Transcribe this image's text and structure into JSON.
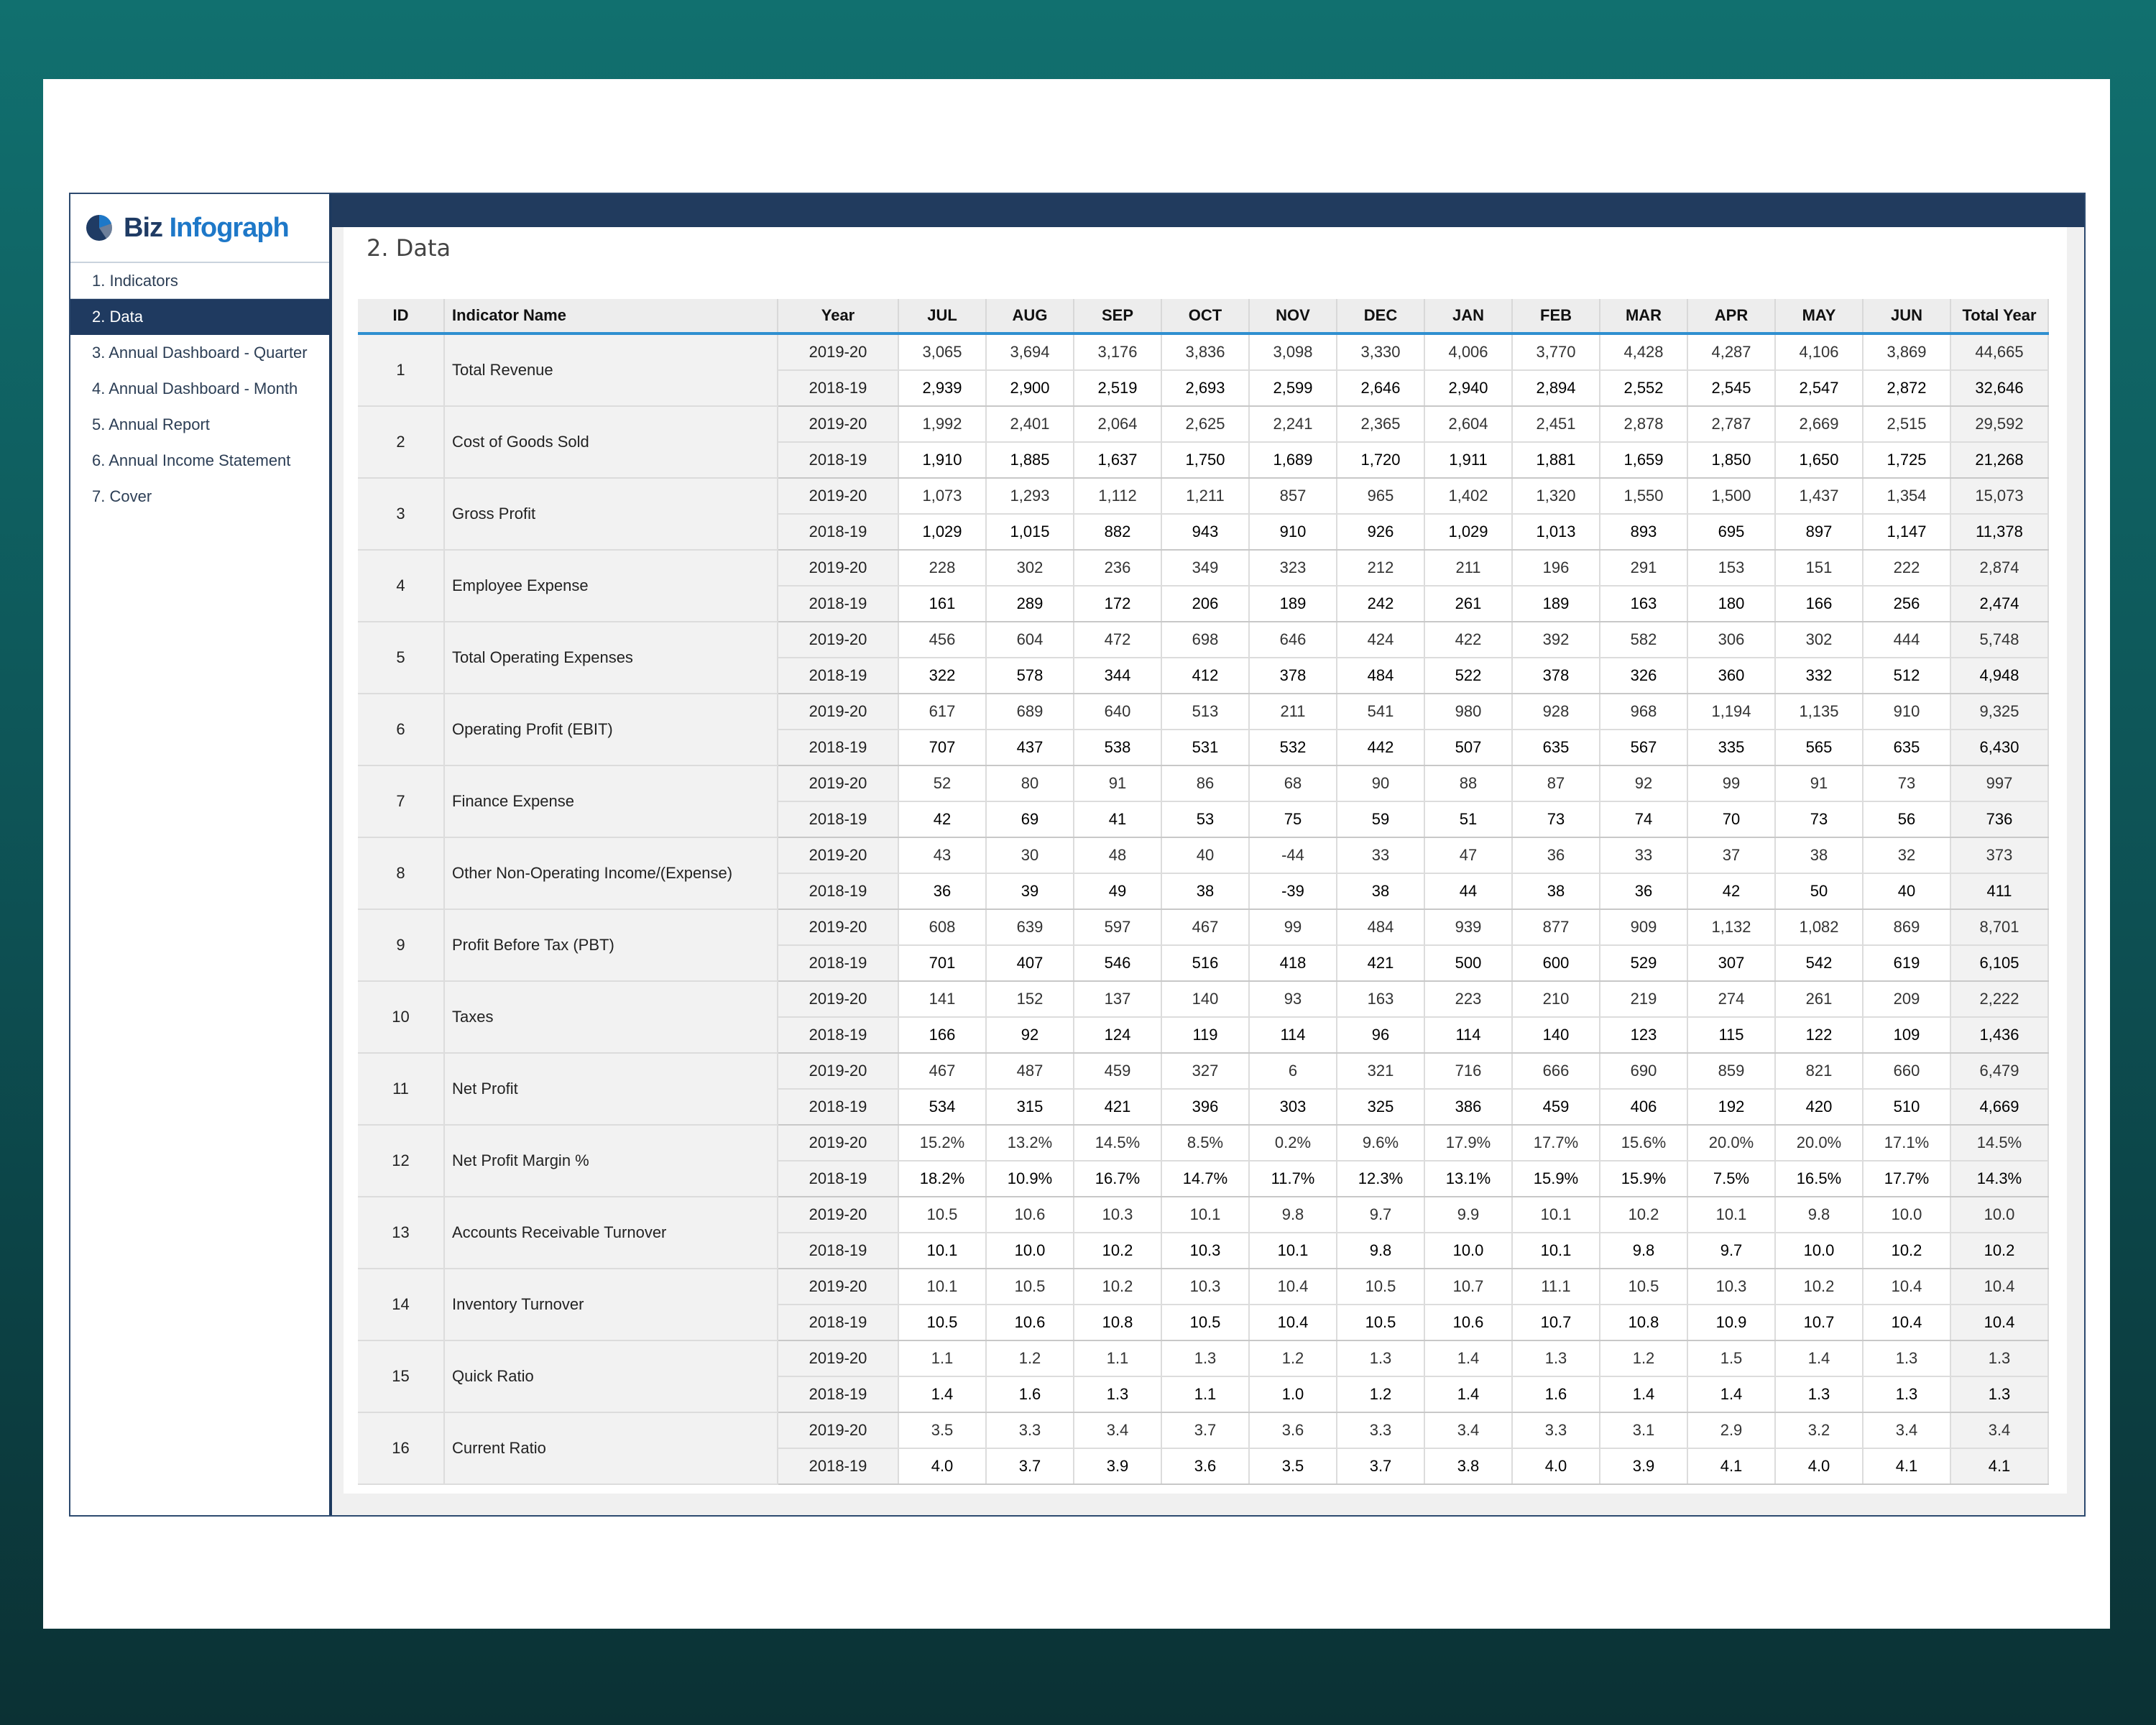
{
  "logo": {
    "part1": "Biz",
    "part2": "Infograph"
  },
  "sidebar": {
    "items": [
      {
        "label": "1. Indicators"
      },
      {
        "label": "2. Data"
      },
      {
        "label": "3. Annual Dashboard - Quarter"
      },
      {
        "label": "4. Annual Dashboard - Month"
      },
      {
        "label": "5. Annual Report"
      },
      {
        "label": "6. Annual Income Statement"
      },
      {
        "label": "7. Cover"
      }
    ]
  },
  "page": {
    "title": "2. Data"
  },
  "table": {
    "headers": [
      "ID",
      "Indicator Name",
      "Year",
      "JUL",
      "AUG",
      "SEP",
      "OCT",
      "NOV",
      "DEC",
      "JAN",
      "FEB",
      "MAR",
      "APR",
      "MAY",
      "JUN",
      "Total Year"
    ],
    "rows": [
      {
        "id": "1",
        "name": "Total Revenue",
        "y1": "2019-20",
        "v1": [
          "3,065",
          "3,694",
          "3,176",
          "3,836",
          "3,098",
          "3,330",
          "4,006",
          "3,770",
          "4,428",
          "4,287",
          "4,106",
          "3,869",
          "44,665"
        ],
        "y2": "2018-19",
        "v2": [
          "2,939",
          "2,900",
          "2,519",
          "2,693",
          "2,599",
          "2,646",
          "2,940",
          "2,894",
          "2,552",
          "2,545",
          "2,547",
          "2,872",
          "32,646"
        ]
      },
      {
        "id": "2",
        "name": "Cost of Goods Sold",
        "y1": "2019-20",
        "v1": [
          "1,992",
          "2,401",
          "2,064",
          "2,625",
          "2,241",
          "2,365",
          "2,604",
          "2,451",
          "2,878",
          "2,787",
          "2,669",
          "2,515",
          "29,592"
        ],
        "y2": "2018-19",
        "v2": [
          "1,910",
          "1,885",
          "1,637",
          "1,750",
          "1,689",
          "1,720",
          "1,911",
          "1,881",
          "1,659",
          "1,850",
          "1,650",
          "1,725",
          "21,268"
        ]
      },
      {
        "id": "3",
        "name": "Gross Profit",
        "y1": "2019-20",
        "v1": [
          "1,073",
          "1,293",
          "1,112",
          "1,211",
          "857",
          "965",
          "1,402",
          "1,320",
          "1,550",
          "1,500",
          "1,437",
          "1,354",
          "15,073"
        ],
        "y2": "2018-19",
        "v2": [
          "1,029",
          "1,015",
          "882",
          "943",
          "910",
          "926",
          "1,029",
          "1,013",
          "893",
          "695",
          "897",
          "1,147",
          "11,378"
        ]
      },
      {
        "id": "4",
        "name": "Employee Expense",
        "y1": "2019-20",
        "v1": [
          "228",
          "302",
          "236",
          "349",
          "323",
          "212",
          "211",
          "196",
          "291",
          "153",
          "151",
          "222",
          "2,874"
        ],
        "y2": "2018-19",
        "v2": [
          "161",
          "289",
          "172",
          "206",
          "189",
          "242",
          "261",
          "189",
          "163",
          "180",
          "166",
          "256",
          "2,474"
        ]
      },
      {
        "id": "5",
        "name": "Total Operating Expenses",
        "y1": "2019-20",
        "v1": [
          "456",
          "604",
          "472",
          "698",
          "646",
          "424",
          "422",
          "392",
          "582",
          "306",
          "302",
          "444",
          "5,748"
        ],
        "y2": "2018-19",
        "v2": [
          "322",
          "578",
          "344",
          "412",
          "378",
          "484",
          "522",
          "378",
          "326",
          "360",
          "332",
          "512",
          "4,948"
        ]
      },
      {
        "id": "6",
        "name": "Operating Profit (EBIT)",
        "y1": "2019-20",
        "v1": [
          "617",
          "689",
          "640",
          "513",
          "211",
          "541",
          "980",
          "928",
          "968",
          "1,194",
          "1,135",
          "910",
          "9,325"
        ],
        "y2": "2018-19",
        "v2": [
          "707",
          "437",
          "538",
          "531",
          "532",
          "442",
          "507",
          "635",
          "567",
          "335",
          "565",
          "635",
          "6,430"
        ]
      },
      {
        "id": "7",
        "name": "Finance Expense",
        "y1": "2019-20",
        "v1": [
          "52",
          "80",
          "91",
          "86",
          "68",
          "90",
          "88",
          "87",
          "92",
          "99",
          "91",
          "73",
          "997"
        ],
        "y2": "2018-19",
        "v2": [
          "42",
          "69",
          "41",
          "53",
          "75",
          "59",
          "51",
          "73",
          "74",
          "70",
          "73",
          "56",
          "736"
        ]
      },
      {
        "id": "8",
        "name": "Other Non-Operating Income/(Expense)",
        "y1": "2019-20",
        "v1": [
          "43",
          "30",
          "48",
          "40",
          "-44",
          "33",
          "47",
          "36",
          "33",
          "37",
          "38",
          "32",
          "373"
        ],
        "y2": "2018-19",
        "v2": [
          "36",
          "39",
          "49",
          "38",
          "-39",
          "38",
          "44",
          "38",
          "36",
          "42",
          "50",
          "40",
          "411"
        ]
      },
      {
        "id": "9",
        "name": "Profit Before Tax (PBT)",
        "y1": "2019-20",
        "v1": [
          "608",
          "639",
          "597",
          "467",
          "99",
          "484",
          "939",
          "877",
          "909",
          "1,132",
          "1,082",
          "869",
          "8,701"
        ],
        "y2": "2018-19",
        "v2": [
          "701",
          "407",
          "546",
          "516",
          "418",
          "421",
          "500",
          "600",
          "529",
          "307",
          "542",
          "619",
          "6,105"
        ]
      },
      {
        "id": "10",
        "name": "Taxes",
        "y1": "2019-20",
        "v1": [
          "141",
          "152",
          "137",
          "140",
          "93",
          "163",
          "223",
          "210",
          "219",
          "274",
          "261",
          "209",
          "2,222"
        ],
        "y2": "2018-19",
        "v2": [
          "166",
          "92",
          "124",
          "119",
          "114",
          "96",
          "114",
          "140",
          "123",
          "115",
          "122",
          "109",
          "1,436"
        ]
      },
      {
        "id": "11",
        "name": "Net Profit",
        "y1": "2019-20",
        "v1": [
          "467",
          "487",
          "459",
          "327",
          "6",
          "321",
          "716",
          "666",
          "690",
          "859",
          "821",
          "660",
          "6,479"
        ],
        "y2": "2018-19",
        "v2": [
          "534",
          "315",
          "421",
          "396",
          "303",
          "325",
          "386",
          "459",
          "406",
          "192",
          "420",
          "510",
          "4,669"
        ]
      },
      {
        "id": "12",
        "name": "Net Profit Margin %",
        "y1": "2019-20",
        "v1": [
          "15.2%",
          "13.2%",
          "14.5%",
          "8.5%",
          "0.2%",
          "9.6%",
          "17.9%",
          "17.7%",
          "15.6%",
          "20.0%",
          "20.0%",
          "17.1%",
          "14.5%"
        ],
        "y2": "2018-19",
        "v2": [
          "18.2%",
          "10.9%",
          "16.7%",
          "14.7%",
          "11.7%",
          "12.3%",
          "13.1%",
          "15.9%",
          "15.9%",
          "7.5%",
          "16.5%",
          "17.7%",
          "14.3%"
        ]
      },
      {
        "id": "13",
        "name": "Accounts Receivable Turnover",
        "y1": "2019-20",
        "v1": [
          "10.5",
          "10.6",
          "10.3",
          "10.1",
          "9.8",
          "9.7",
          "9.9",
          "10.1",
          "10.2",
          "10.1",
          "9.8",
          "10.0",
          "10.0"
        ],
        "y2": "2018-19",
        "v2": [
          "10.1",
          "10.0",
          "10.2",
          "10.3",
          "10.1",
          "9.8",
          "10.0",
          "10.1",
          "9.8",
          "9.7",
          "10.0",
          "10.2",
          "10.2"
        ]
      },
      {
        "id": "14",
        "name": "Inventory Turnover",
        "y1": "2019-20",
        "v1": [
          "10.1",
          "10.5",
          "10.2",
          "10.3",
          "10.4",
          "10.5",
          "10.7",
          "11.1",
          "10.5",
          "10.3",
          "10.2",
          "10.4",
          "10.4"
        ],
        "y2": "2018-19",
        "v2": [
          "10.5",
          "10.6",
          "10.8",
          "10.5",
          "10.4",
          "10.5",
          "10.6",
          "10.7",
          "10.8",
          "10.9",
          "10.7",
          "10.4",
          "10.4"
        ]
      },
      {
        "id": "15",
        "name": "Quick Ratio",
        "y1": "2019-20",
        "v1": [
          "1.1",
          "1.2",
          "1.1",
          "1.3",
          "1.2",
          "1.3",
          "1.4",
          "1.3",
          "1.2",
          "1.5",
          "1.4",
          "1.3",
          "1.3"
        ],
        "y2": "2018-19",
        "v2": [
          "1.4",
          "1.6",
          "1.3",
          "1.1",
          "1.0",
          "1.2",
          "1.4",
          "1.6",
          "1.4",
          "1.4",
          "1.3",
          "1.3",
          "1.3"
        ]
      },
      {
        "id": "16",
        "name": "Current Ratio",
        "y1": "2019-20",
        "v1": [
          "3.5",
          "3.3",
          "3.4",
          "3.7",
          "3.6",
          "3.3",
          "3.4",
          "3.3",
          "3.1",
          "2.9",
          "3.2",
          "3.4",
          "3.4"
        ],
        "y2": "2018-19",
        "v2": [
          "4.0",
          "3.7",
          "3.9",
          "3.6",
          "3.5",
          "3.7",
          "3.8",
          "4.0",
          "3.9",
          "4.1",
          "4.0",
          "4.1",
          "4.1"
        ]
      }
    ]
  },
  "colors": {
    "nav_active": "#1f3a60",
    "topbar": "#213b5e",
    "header_rule": "#2f8fd0",
    "logo_dark": "#1f3b64",
    "logo_blue": "#1e78c8"
  }
}
